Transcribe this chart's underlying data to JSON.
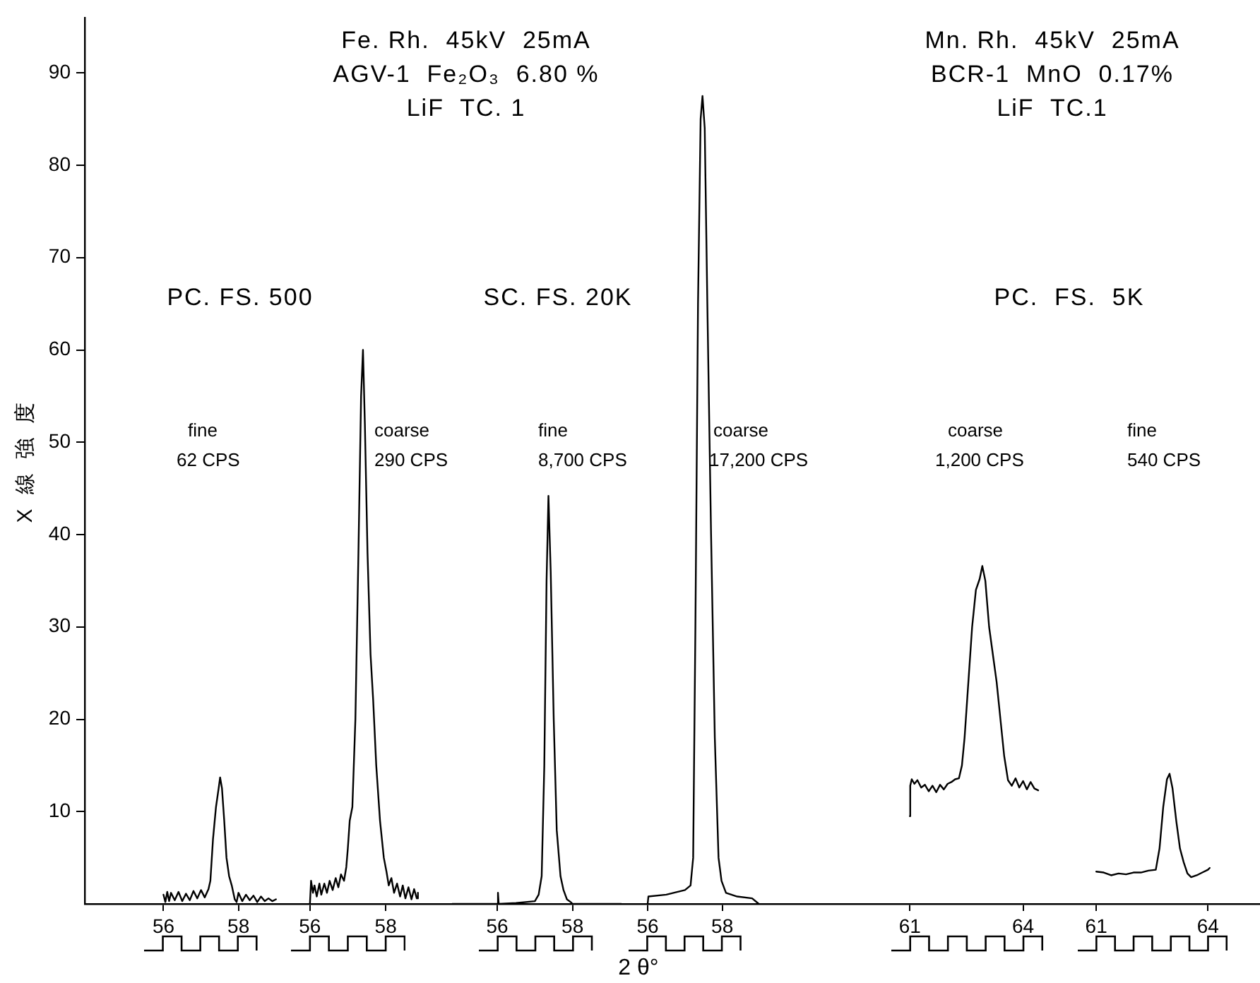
{
  "chart_data": [
    {
      "type": "line",
      "color": "#000000",
      "marker": "none",
      "ylabel": "X 線 強 度",
      "xlim": [
        53.9,
        59.4
      ],
      "xticks": [
        56,
        58
      ],
      "ylim": [
        0,
        96
      ],
      "yticks": [
        10,
        20,
        30,
        40,
        50,
        60,
        70,
        80,
        90
      ],
      "x": [
        56.0,
        56.05,
        56.1,
        56.15,
        56.2,
        56.3,
        56.4,
        56.5,
        56.6,
        56.7,
        56.8,
        56.9,
        57.0,
        57.1,
        57.2,
        57.25,
        57.32,
        57.4,
        57.47,
        57.51,
        57.56,
        57.62,
        57.68,
        57.75,
        57.82,
        57.9,
        57.95,
        58.0,
        58.1,
        58.2,
        58.3,
        58.4,
        58.5,
        58.6,
        58.7,
        58.8,
        58.9,
        59.0
      ],
      "values": [
        1.0,
        0.2,
        1.3,
        0.3,
        1.2,
        0.4,
        1.3,
        0.3,
        1.1,
        0.4,
        1.4,
        0.6,
        1.5,
        0.7,
        1.6,
        2.5,
        7,
        10.5,
        12.5,
        13.7,
        12.5,
        9,
        5,
        3,
        2,
        0.5,
        0.2,
        1.2,
        0.3,
        1.0,
        0.4,
        0.9,
        0.2,
        0.8,
        0.3,
        0.6,
        0.3,
        0.5
      ],
      "annotations": [
        "PC. FS. 500",
        "fine",
        "62 CPS"
      ]
    },
    {
      "type": "line",
      "color": "#000000",
      "marker": "none",
      "tick_labels": "x",
      "xlim": [
        55.5,
        59.75
      ],
      "xticks": [
        56,
        58
      ],
      "ylim": [
        0,
        90
      ],
      "yticks": [
        10,
        20,
        30,
        40,
        50,
        60,
        70,
        80,
        90
      ],
      "x": [
        56.0,
        56.03,
        56.08,
        56.12,
        56.18,
        56.25,
        56.3,
        56.38,
        56.45,
        56.52,
        56.6,
        56.68,
        56.75,
        56.82,
        56.9,
        56.96,
        57.0,
        57.05,
        57.12,
        57.2,
        57.28,
        57.35,
        57.4,
        57.45,
        57.52,
        57.6,
        57.67,
        57.75,
        57.85,
        57.95,
        58.02,
        58.08,
        58.15,
        58.22,
        58.3,
        58.38,
        58.45,
        58.52,
        58.6,
        58.68,
        58.75,
        58.82,
        58.85
      ],
      "values": [
        0,
        2.5,
        1.2,
        2,
        0.8,
        2.2,
        1,
        2.2,
        1.2,
        2.5,
        1.5,
        2.8,
        1.8,
        3.2,
        2.5,
        4,
        6,
        9,
        10.5,
        20,
        38,
        55,
        60,
        52,
        38,
        27,
        22,
        15,
        9,
        5,
        3.5,
        2,
        2.8,
        1.2,
        2.2,
        0.8,
        2,
        0.6,
        1.8,
        0.5,
        1.6,
        0.6,
        1.2
      ],
      "annotations": [
        "Fe. Rh.  45kV  25mA",
        "AGV-1  Fe₂O₃  6.80 %",
        "LiF  TC. 1",
        "coarse",
        "290 CPS"
      ]
    },
    {
      "type": "line",
      "color": "#000000",
      "marker": "none",
      "tick_labels": "x",
      "xlim": [
        54.8,
        59.3
      ],
      "xticks": [
        56,
        58
      ],
      "ylim": [
        0,
        90
      ],
      "yticks": [
        10,
        20,
        30,
        40,
        50,
        60,
        70,
        80,
        90
      ],
      "x": [
        54.8,
        56.0,
        56.02,
        56.04,
        56.5,
        57.0,
        57.1,
        57.18,
        57.25,
        57.31,
        57.36,
        57.42,
        57.5,
        57.58,
        57.68,
        57.76,
        57.85,
        57.95,
        58.0,
        59.3
      ],
      "values": [
        0,
        0,
        1.2,
        0,
        0.1,
        0.3,
        1,
        3,
        15,
        35,
        44.2,
        36,
        20,
        8,
        3,
        1.5,
        0.5,
        0.2,
        0,
        0
      ],
      "annotations": [
        "SC. FS. 20K",
        "fine",
        "8,700 CPS"
      ]
    },
    {
      "type": "line",
      "color": "#000000",
      "marker": "none",
      "tick_labels": "x",
      "xlabel": "2 θ°",
      "xlim": [
        55.3,
        60.6
      ],
      "xticks": [
        56,
        58
      ],
      "ylim": [
        0,
        90
      ],
      "yticks": [
        10,
        20,
        30,
        40,
        50,
        60,
        70,
        80,
        90
      ],
      "x": [
        56.0,
        56.02,
        56.5,
        57.0,
        57.15,
        57.22,
        57.28,
        57.35,
        57.42,
        57.47,
        57.53,
        57.6,
        57.7,
        57.8,
        57.9,
        57.98,
        58.1,
        58.4,
        58.8,
        58.98
      ],
      "values": [
        0,
        0.8,
        1.0,
        1.5,
        2,
        5,
        30,
        65,
        85,
        87.5,
        84,
        65,
        40,
        18,
        5,
        2.5,
        1.2,
        0.8,
        0.6,
        0
      ],
      "annotations": [
        "coarse",
        "17,200 CPS"
      ]
    },
    {
      "type": "line",
      "color": "#000000",
      "marker": "none",
      "tick_labels": "x",
      "xlim": [
        58.6,
        65.15
      ],
      "xticks": [
        61,
        64
      ],
      "ylim": [
        0,
        90
      ],
      "yticks": [
        10,
        20,
        30,
        40,
        50,
        60,
        70,
        80,
        90
      ],
      "x": [
        61.0,
        61.01,
        61.05,
        61.12,
        61.2,
        61.3,
        61.4,
        61.5,
        61.6,
        61.7,
        61.8,
        61.9,
        62.0,
        62.1,
        62.2,
        62.3,
        62.38,
        62.45,
        62.55,
        62.65,
        62.75,
        62.85,
        62.92,
        63.0,
        63.1,
        63.2,
        63.3,
        63.4,
        63.5,
        63.6,
        63.7,
        63.8,
        63.9,
        64.0,
        64.1,
        64.2,
        64.3,
        64.4
      ],
      "values": [
        9.5,
        12.8,
        13.5,
        13,
        13.4,
        12.6,
        12.9,
        12.2,
        12.8,
        12.1,
        12.9,
        12.4,
        13,
        13.2,
        13.5,
        13.6,
        15,
        18,
        24,
        30,
        34,
        35.2,
        36.6,
        35,
        30,
        27,
        24,
        20,
        16,
        13.4,
        12.8,
        13.6,
        12.6,
        13.3,
        12.4,
        13.2,
        12.5,
        12.3
      ],
      "annotations": [
        "Mn. Rh.  45kV  25mA",
        "BCR-1  MnO  0.17%",
        "LiF  TC.1",
        "PC.  FS.  5K",
        "coarse",
        "1,200 CPS"
      ]
    },
    {
      "type": "line",
      "color": "#000000",
      "marker": "none",
      "tick_labels": "x",
      "xlim": [
        60.2,
        65.4
      ],
      "xticks": [
        61,
        64
      ],
      "ylim": [
        0,
        90
      ],
      "yticks": [
        10,
        20,
        30,
        40,
        50,
        60,
        70,
        80,
        90
      ],
      "x": [
        61.0,
        61.2,
        61.4,
        61.6,
        61.8,
        62.0,
        62.2,
        62.4,
        62.6,
        62.7,
        62.8,
        62.9,
        62.97,
        63.05,
        63.15,
        63.25,
        63.35,
        63.45,
        63.55,
        63.7,
        63.85,
        64.0,
        64.05
      ],
      "values": [
        3.5,
        3.4,
        3.1,
        3.3,
        3.2,
        3.4,
        3.4,
        3.6,
        3.7,
        6,
        10.5,
        13.5,
        14.1,
        12.5,
        9,
        6,
        4.5,
        3.3,
        2.9,
        3.1,
        3.4,
        3.7,
        3.9
      ],
      "annotations": [
        "fine",
        "540 CPS"
      ]
    }
  ]
}
